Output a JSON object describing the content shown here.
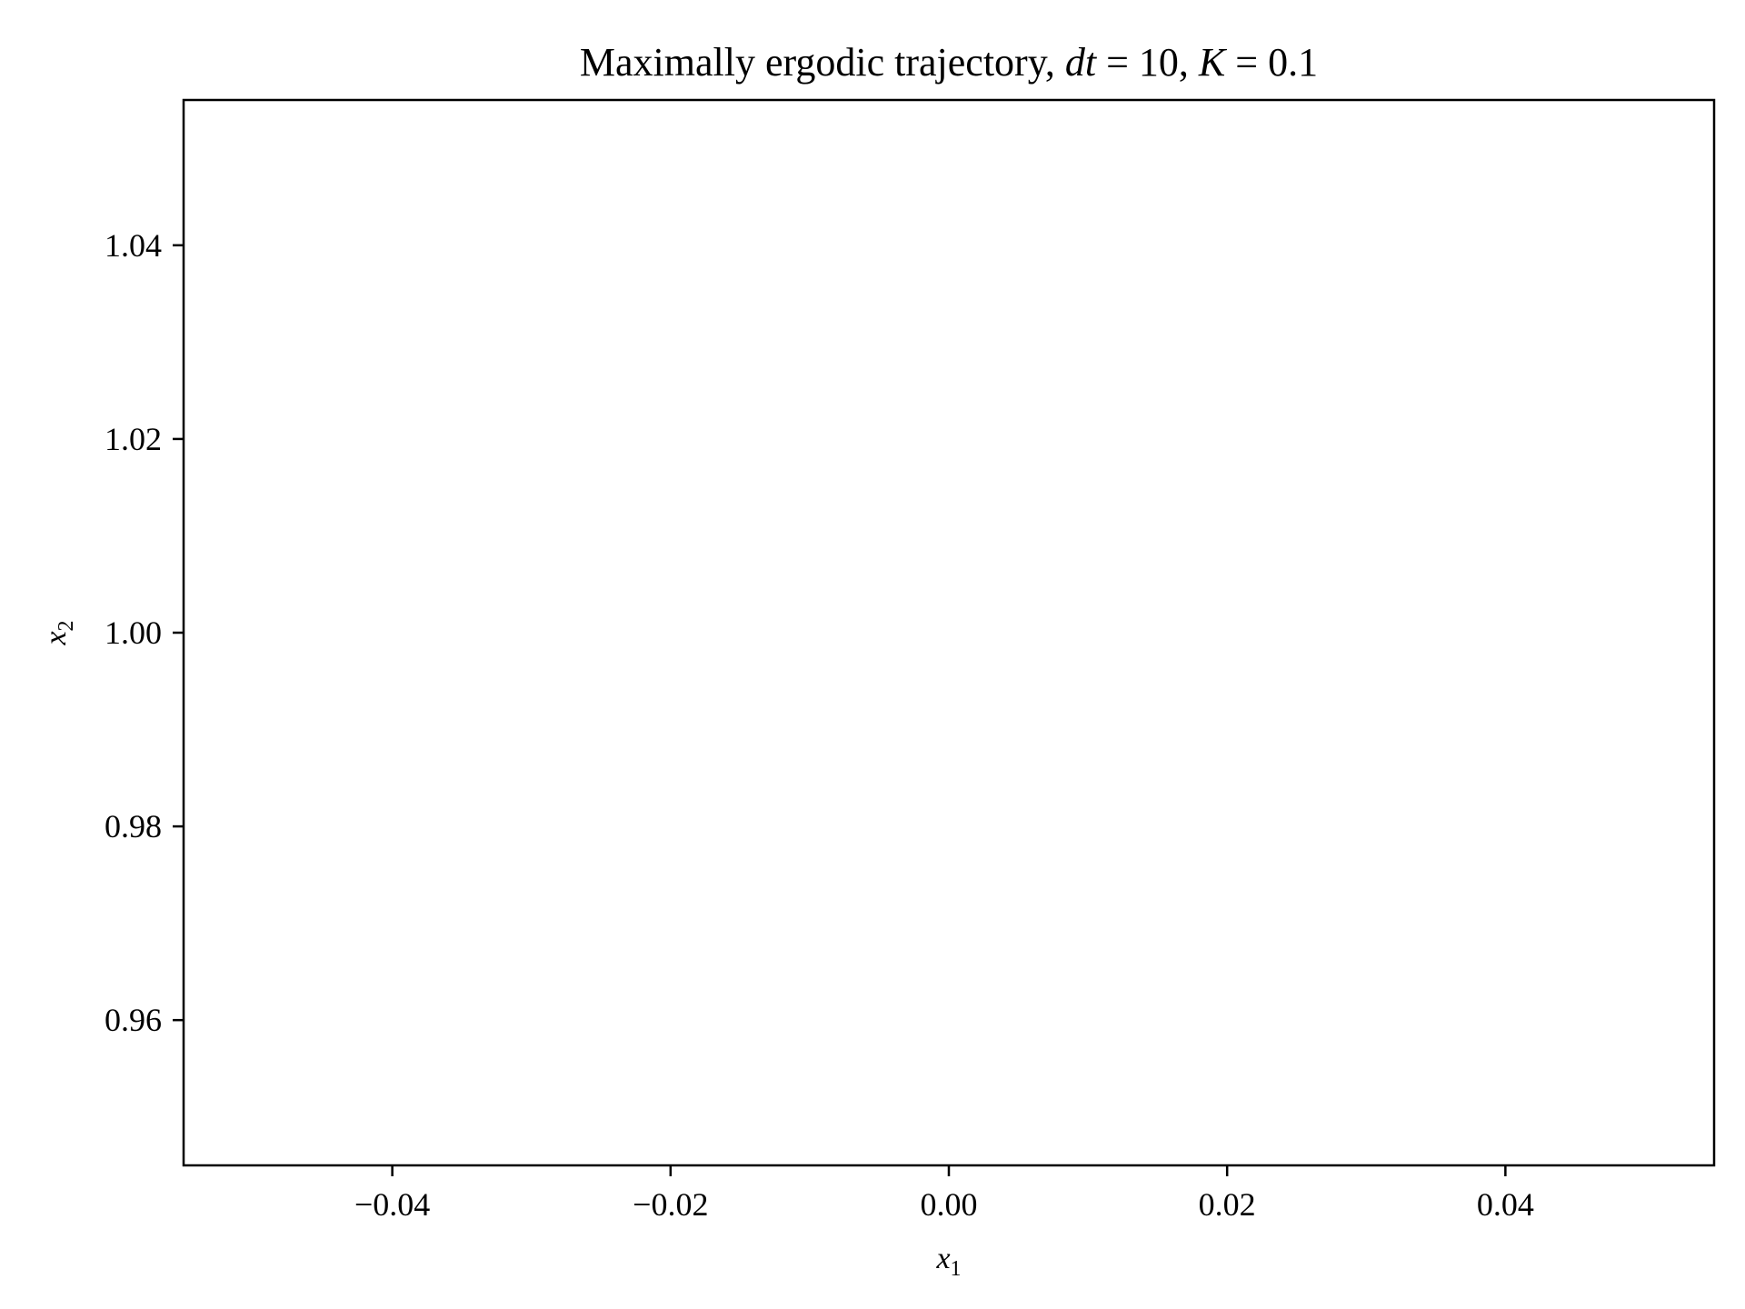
{
  "chart_data": {
    "type": "line",
    "title": {
      "prefix": "Maximally ergodic trajectory, ",
      "dt_symbol": "dt",
      "dt_eq": " = ",
      "dt_value": "10",
      "sep": ", ",
      "k_symbol": "K",
      "k_eq": " = ",
      "k_value": "0.1"
    },
    "xlabel": {
      "base": "x",
      "sub": "1"
    },
    "ylabel": {
      "base": "x",
      "sub": "2"
    },
    "xlim": [
      -0.055,
      0.055
    ],
    "ylim": [
      0.945,
      1.055
    ],
    "xticks": [
      -0.04,
      -0.02,
      0.0,
      0.02,
      0.04
    ],
    "xtick_labels": [
      "−0.04",
      "−0.02",
      "0.00",
      "0.02",
      "0.04"
    ],
    "yticks": [
      0.96,
      0.98,
      1.0,
      1.02,
      1.04
    ],
    "ytick_labels": [
      "0.96",
      "0.98",
      "1.00",
      "1.02",
      "1.04"
    ],
    "grid": false,
    "series": []
  },
  "colors": {
    "axes": "#000000",
    "background": "#ffffff"
  }
}
